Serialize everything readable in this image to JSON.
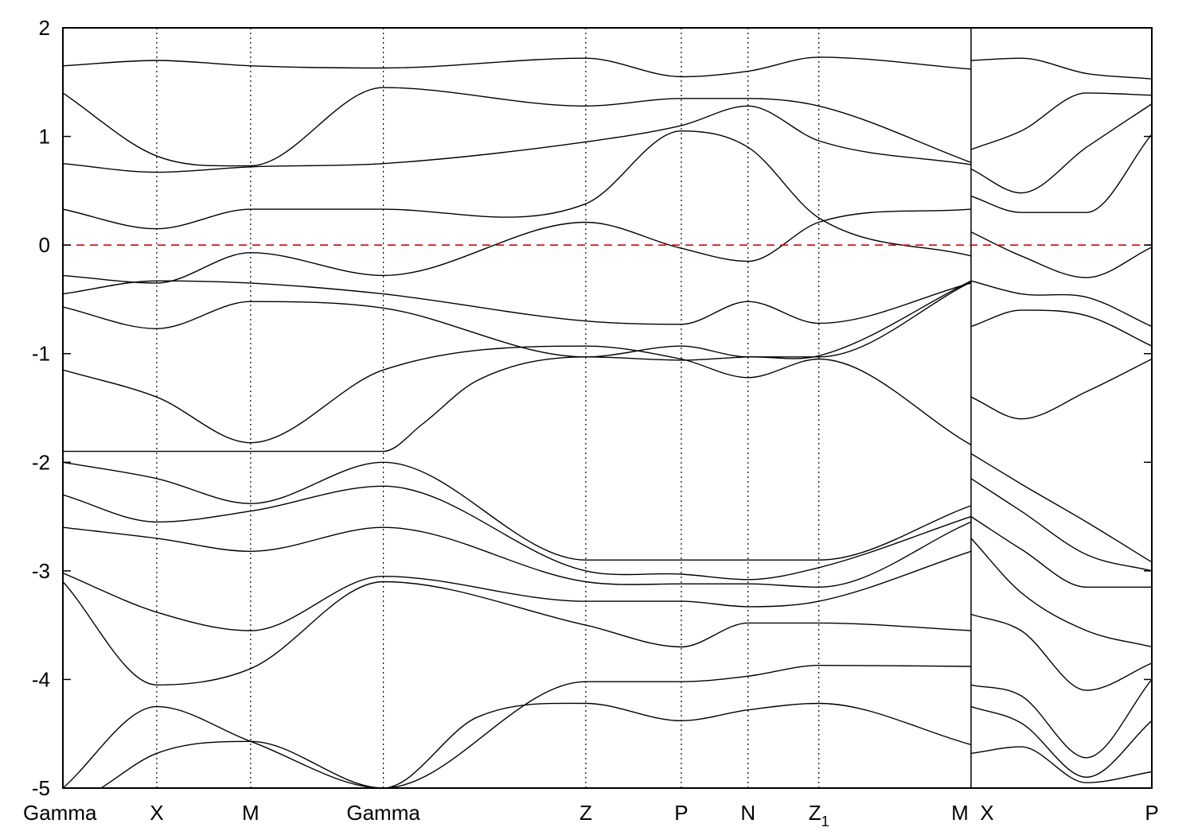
{
  "chart_data": {
    "type": "line",
    "title": "",
    "xlabel": "",
    "ylabel": "",
    "ylim": [
      -5,
      2
    ],
    "yticks": [
      2,
      1,
      0,
      -1,
      -2,
      -3,
      -4,
      -5
    ],
    "ytick_labels": [
      "2",
      "1",
      "0",
      "-1",
      "-2",
      "-3",
      "-4",
      "-5"
    ],
    "kpoints": [
      {
        "label": "Gamma",
        "k": 0.0
      },
      {
        "label": "X",
        "k": 0.862
      },
      {
        "label": "M",
        "k": 1.724
      },
      {
        "label": "Gamma",
        "k": 2.943
      },
      {
        "label": "Z",
        "k": 4.802
      },
      {
        "label": "P",
        "k": 5.679
      },
      {
        "label": "N",
        "k": 6.292
      },
      {
        "label": "Z",
        "sub": "1",
        "k": 6.942
      },
      {
        "label": "M",
        "k": 8.34
      },
      {
        "label": "X",
        "k": 8.34
      },
      {
        "label": "P",
        "k": 10.0
      }
    ],
    "break_at_k": 8.34,
    "fermi_level": 0,
    "grid": false,
    "series": [
      {
        "k": [
          0,
          0.862,
          1.724,
          2.943,
          4.802,
          5.679,
          6.292,
          6.942,
          8.34
        ],
        "y": [
          -1.15,
          -1.4,
          -1.82,
          -1.15,
          -0.93,
          -1.05,
          -1.22,
          -1.05,
          -1.84
        ]
      },
      {
        "k": [
          0,
          0.862,
          1.724,
          2.943,
          3.3,
          3.8,
          4.802,
          5.679,
          6.292,
          6.942,
          8.34
        ],
        "y": [
          -1.9,
          -1.9,
          -1.9,
          -1.9,
          -1.65,
          -1.25,
          -1.03,
          -1.06,
          -1.03,
          -1.02,
          -0.33
        ]
      },
      {
        "k": [
          0,
          0.862,
          1.724,
          2.943,
          4.802,
          5.679,
          6.292,
          6.942,
          8.34
        ],
        "y": [
          -0.57,
          -0.77,
          -0.52,
          -0.58,
          -1.03,
          -0.93,
          -1.03,
          -1.03,
          -0.34
        ]
      },
      {
        "k": [
          0,
          0.862,
          1.724,
          2.943,
          4.802,
          5.679,
          6.292,
          6.942,
          8.34
        ],
        "y": [
          -0.45,
          -0.33,
          -0.35,
          -0.45,
          -0.7,
          -0.73,
          -0.52,
          -0.72,
          -0.35
        ]
      },
      {
        "k": [
          0,
          0.862,
          1.724,
          2.943,
          4.802,
          5.679,
          6.292,
          6.942,
          8.34
        ],
        "y": [
          -0.28,
          -0.35,
          -0.07,
          -0.28,
          0.21,
          -0.03,
          -0.15,
          0.21,
          0.33
        ]
      },
      {
        "k": [
          0,
          0.862,
          1.724,
          2.943,
          4.802,
          5.679,
          6.292,
          6.942,
          8.34
        ],
        "y": [
          0.33,
          0.15,
          0.33,
          0.33,
          0.38,
          1.05,
          0.9,
          0.25,
          -0.1
        ]
      },
      {
        "k": [
          0,
          0.862,
          1.724,
          2.943,
          4.802,
          5.679,
          6.292,
          6.942,
          8.34
        ],
        "y": [
          0.75,
          0.67,
          0.72,
          0.75,
          0.95,
          1.1,
          1.28,
          0.96,
          0.74
        ]
      },
      {
        "k": [
          0,
          0.862,
          1.724,
          2.943,
          4.802,
          5.679,
          6.292,
          6.942,
          8.34
        ],
        "y": [
          1.4,
          0.82,
          0.73,
          1.45,
          1.28,
          1.35,
          1.35,
          1.28,
          0.76
        ]
      },
      {
        "k": [
          0,
          0.862,
          1.724,
          2.943,
          4.802,
          5.679,
          6.292,
          6.942,
          8.34
        ],
        "y": [
          1.65,
          1.7,
          1.65,
          1.63,
          1.72,
          1.55,
          1.6,
          1.73,
          1.62
        ]
      },
      {
        "k": [
          0,
          0.862,
          1.724,
          2.943,
          4.802,
          5.679,
          6.292,
          6.942,
          8.34
        ],
        "y": [
          -2.0,
          -2.15,
          -2.38,
          -2.0,
          -2.9,
          -2.9,
          -2.9,
          -2.9,
          -2.4
        ]
      },
      {
        "k": [
          0,
          0.862,
          1.724,
          2.943,
          4.802,
          5.679,
          6.292,
          6.942,
          8.34
        ],
        "y": [
          -2.3,
          -2.55,
          -2.45,
          -2.22,
          -3.0,
          -3.03,
          -3.08,
          -2.97,
          -2.5
        ]
      },
      {
        "k": [
          0,
          0.862,
          1.724,
          2.943,
          4.802,
          5.679,
          6.292,
          6.942,
          8.34
        ],
        "y": [
          -2.6,
          -2.7,
          -2.82,
          -2.6,
          -3.1,
          -3.12,
          -3.12,
          -3.15,
          -2.55
        ]
      },
      {
        "k": [
          0,
          0.862,
          1.724,
          2.943,
          4.802,
          5.679,
          6.292,
          6.942,
          8.34
        ],
        "y": [
          -3.02,
          -3.38,
          -3.55,
          -3.05,
          -3.28,
          -3.28,
          -3.33,
          -3.28,
          -2.82
        ]
      },
      {
        "k": [
          0,
          0.862,
          1.724,
          2.943,
          4.802,
          5.679,
          6.292,
          6.942,
          8.34
        ],
        "y": [
          -3.1,
          -4.05,
          -3.9,
          -3.1,
          -3.5,
          -3.7,
          -3.48,
          -3.48,
          -3.55
        ]
      },
      {
        "k": [
          0,
          0.862,
          1.724,
          2.943,
          3.8,
          4.802,
          5.679,
          6.292,
          6.942,
          8.34
        ],
        "y": [
          -5.0,
          -4.25,
          -4.57,
          -5.0,
          -4.35,
          -4.22,
          -4.38,
          -4.28,
          -4.22,
          -4.6
        ]
      },
      {
        "k": [
          0.35,
          0.862,
          1.724,
          2.943,
          4.802,
          5.679,
          6.292,
          6.942,
          8.34
        ],
        "y": [
          -5.0,
          -4.68,
          -4.57,
          -5.0,
          -4.02,
          -4.02,
          -3.97,
          -3.87,
          -3.88
        ]
      },
      {
        "k": [
          8.34,
          8.8,
          9.4,
          10.0
        ],
        "y": [
          -1.4,
          -1.6,
          -1.35,
          -1.05
        ]
      },
      {
        "k": [
          8.34,
          8.8,
          9.4,
          10.0
        ],
        "y": [
          -0.75,
          -0.6,
          -0.65,
          -0.93
        ]
      },
      {
        "k": [
          8.34,
          8.8,
          9.4,
          10.0
        ],
        "y": [
          -0.33,
          -0.45,
          -0.48,
          -0.75
        ]
      },
      {
        "k": [
          8.34,
          8.8,
          9.4,
          10.0
        ],
        "y": [
          0.12,
          -0.1,
          -0.3,
          -0.02
        ]
      },
      {
        "k": [
          8.34,
          8.8,
          9.4,
          10.0
        ],
        "y": [
          0.45,
          0.3,
          0.3,
          1.02
        ]
      },
      {
        "k": [
          8.34,
          8.8,
          9.4,
          10.0
        ],
        "y": [
          0.7,
          0.48,
          0.9,
          1.3
        ]
      },
      {
        "k": [
          8.34,
          8.8,
          9.4,
          10.0
        ],
        "y": [
          0.88,
          1.05,
          1.4,
          1.38
        ]
      },
      {
        "k": [
          8.34,
          8.8,
          9.4,
          10.0
        ],
        "y": [
          1.7,
          1.72,
          1.58,
          1.53
        ]
      },
      {
        "k": [
          8.34,
          8.8,
          9.4,
          10.0
        ],
        "y": [
          -1.92,
          -2.2,
          -2.55,
          -2.92
        ]
      },
      {
        "k": [
          8.34,
          8.8,
          9.4,
          10.0
        ],
        "y": [
          -2.15,
          -2.45,
          -2.85,
          -3.0
        ]
      },
      {
        "k": [
          8.34,
          8.8,
          9.4,
          10.0
        ],
        "y": [
          -2.5,
          -2.8,
          -3.15,
          -3.15
        ]
      },
      {
        "k": [
          8.34,
          8.8,
          9.4,
          10.0
        ],
        "y": [
          -2.7,
          -3.2,
          -3.55,
          -3.7
        ]
      },
      {
        "k": [
          8.34,
          8.8,
          9.4,
          10.0
        ],
        "y": [
          -3.4,
          -3.55,
          -4.1,
          -3.85
        ]
      },
      {
        "k": [
          8.34,
          8.8,
          9.4,
          10.0
        ],
        "y": [
          -4.05,
          -4.15,
          -4.72,
          -4.0
        ]
      },
      {
        "k": [
          8.34,
          8.8,
          9.4,
          10.0
        ],
        "y": [
          -4.25,
          -4.4,
          -4.9,
          -4.38
        ]
      },
      {
        "k": [
          8.34,
          8.8,
          9.4,
          10.0
        ],
        "y": [
          -4.68,
          -4.62,
          -4.95,
          -4.85
        ]
      }
    ]
  }
}
